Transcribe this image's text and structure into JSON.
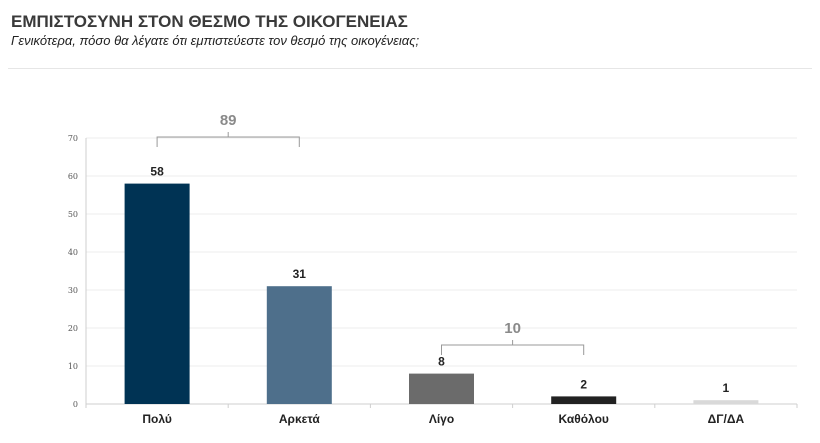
{
  "chart_data": {
    "type": "bar",
    "title": "ΕΜΠΙΣΤΟΣΥΝΗ ΣΤΟΝ ΘΕΣΜΟ ΤΗΣ ΟΙΚΟΓΕΝΕΙΑΣ",
    "subtitle": "Γενικότερα, πόσο θα λέγατε ότι εμπιστεύεστε τον θεσμό της οικογένειας;",
    "categories": [
      "Πολύ",
      "Αρκετά",
      "Λίγο",
      "Καθόλου",
      "ΔΓ/ΔΑ"
    ],
    "values": [
      58,
      31,
      8,
      2,
      1
    ],
    "colors": [
      "#003354",
      "#4e6f8b",
      "#6b6b6b",
      "#222222",
      "#d9d9d9"
    ],
    "ylim": [
      0,
      70
    ],
    "yticks": [
      0,
      10,
      20,
      30,
      40,
      50,
      60,
      70
    ],
    "grid": true,
    "groups": [
      {
        "label": "89",
        "from": 0,
        "to": 1
      },
      {
        "label": "10",
        "from": 2,
        "to": 3
      }
    ]
  }
}
